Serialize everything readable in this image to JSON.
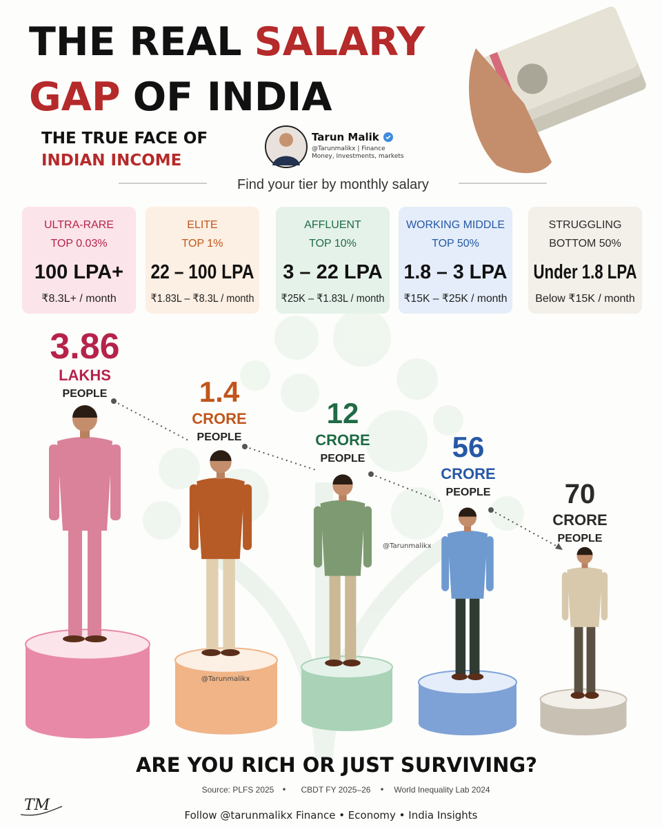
{
  "header": {
    "title_word1": "THE REAL",
    "title_word2": "SALARY",
    "title_word3": "GAP",
    "title_word4": "OF INDIA",
    "subtitle_line1": "THE TRUE FACE OF",
    "subtitle_line2": "INDIAN INCOME"
  },
  "author": {
    "name": "Tarun Malik",
    "handle": "@Tarunmalikx | Finance",
    "tagline": "Money, Investments, markets"
  },
  "tier_prompt": "Find your tier by monthly salary",
  "tiers": [
    {
      "label": "ULTRA-RARE",
      "rank": "TOP 0.03%",
      "annual": "100 LPA+",
      "monthly": "₹8.3L+ / month",
      "count": "3.86",
      "unit": "LAKHS",
      "people": "PEOPLE",
      "color": "#b5234a",
      "box_color": "#fbe4ea",
      "podium_color": "#e88aa7",
      "suit_color": "#d9829a"
    },
    {
      "label": "ELITE",
      "rank": "TOP 1%",
      "annual": "22 – 100 LPA",
      "monthly": "₹1.83L – ₹8.3L / month",
      "count": "1.4",
      "unit": "CRORE",
      "people": "PEOPLE",
      "color": "#c0561c",
      "box_color": "#fcefe3",
      "podium_color": "#f0b487",
      "suit_color": "#b65a26"
    },
    {
      "label": "AFFLUENT",
      "rank": "TOP 10%",
      "annual": "3 – 22 LPA",
      "monthly": "₹25K – ₹1.83L / month",
      "count": "12",
      "unit": "CRORE",
      "people": "PEOPLE",
      "color": "#1f6b45",
      "box_color": "#e5f2ea",
      "podium_color": "#a9d2b6",
      "suit_color": "#7e9a72"
    },
    {
      "label": "WORKING MIDDLE",
      "rank": "TOP 50%",
      "annual": "1.8 – 3 LPA",
      "monthly": "₹15K – ₹25K / month",
      "count": "56",
      "unit": "CRORE",
      "people": "PEOPLE",
      "color": "#2758a6",
      "box_color": "#e4edf9",
      "podium_color": "#7ea2d6",
      "suit_color": "#6e9ad0"
    },
    {
      "label": "STRUGGLING",
      "rank": "BOTTOM 50%",
      "annual": "Under 1.8 LPA",
      "monthly": "Below ₹15K / month",
      "count": "70",
      "unit": "CRORE",
      "people": "PEOPLE",
      "color": "#2b2b2b",
      "box_color": "#f3efe9",
      "podium_color": "#c9c0b4",
      "suit_color": "#d8c9ad"
    }
  ],
  "watermarks": [
    "@Tarunmalikx",
    "@Tarunmalikx"
  ],
  "question": "ARE YOU RICH OR JUST SURVIVING?",
  "sources": [
    "Source: PLFS 2025",
    "CBDT FY 2025–26",
    "World Inequality Lab 2024"
  ],
  "separator": "•",
  "footer": "Follow @tarunmalikx Finance • Economy • India Insights",
  "signature": "TM"
}
